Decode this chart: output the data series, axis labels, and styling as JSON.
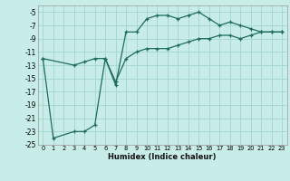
{
  "xlabel": "Humidex (Indice chaleur)",
  "background_color": "#c8ece8",
  "grid_color": "#a8d8d4",
  "line_color": "#1e6b5e",
  "ylim": [
    -25,
    -4
  ],
  "xlim": [
    -0.5,
    23.5
  ],
  "yticks": [
    -25,
    -23,
    -21,
    -19,
    -17,
    -15,
    -13,
    -11,
    -9,
    -7,
    -5
  ],
  "xticks": [
    0,
    1,
    2,
    3,
    4,
    5,
    6,
    7,
    8,
    9,
    10,
    11,
    12,
    13,
    14,
    15,
    16,
    17,
    18,
    19,
    20,
    21,
    22,
    23
  ],
  "curve1_x": [
    0,
    1,
    3,
    4,
    5,
    6,
    7,
    8,
    9,
    10,
    11,
    12,
    13,
    14,
    15,
    16,
    17,
    18,
    19,
    20,
    21,
    22,
    23
  ],
  "curve1_y": [
    -12,
    -24,
    -23,
    -23,
    -22,
    -12,
    -16,
    -8,
    -8,
    -6,
    -5.5,
    -5.5,
    -6,
    -5.5,
    -5,
    -6,
    -7,
    -6.5,
    -7,
    -7.5,
    -8,
    -8,
    -8
  ],
  "curve2_x": [
    0,
    3,
    4,
    5,
    6,
    7,
    8,
    9,
    10,
    11,
    12,
    13,
    14,
    15,
    16,
    17,
    18,
    19,
    20,
    21,
    22,
    23
  ],
  "curve2_y": [
    -12,
    -13,
    -12.5,
    -12,
    -12,
    -15.5,
    -12,
    -11,
    -10.5,
    -10.5,
    -10.5,
    -10,
    -9.5,
    -9,
    -9,
    -8.5,
    -8.5,
    -9,
    -8.5,
    -8,
    -8,
    -8
  ]
}
